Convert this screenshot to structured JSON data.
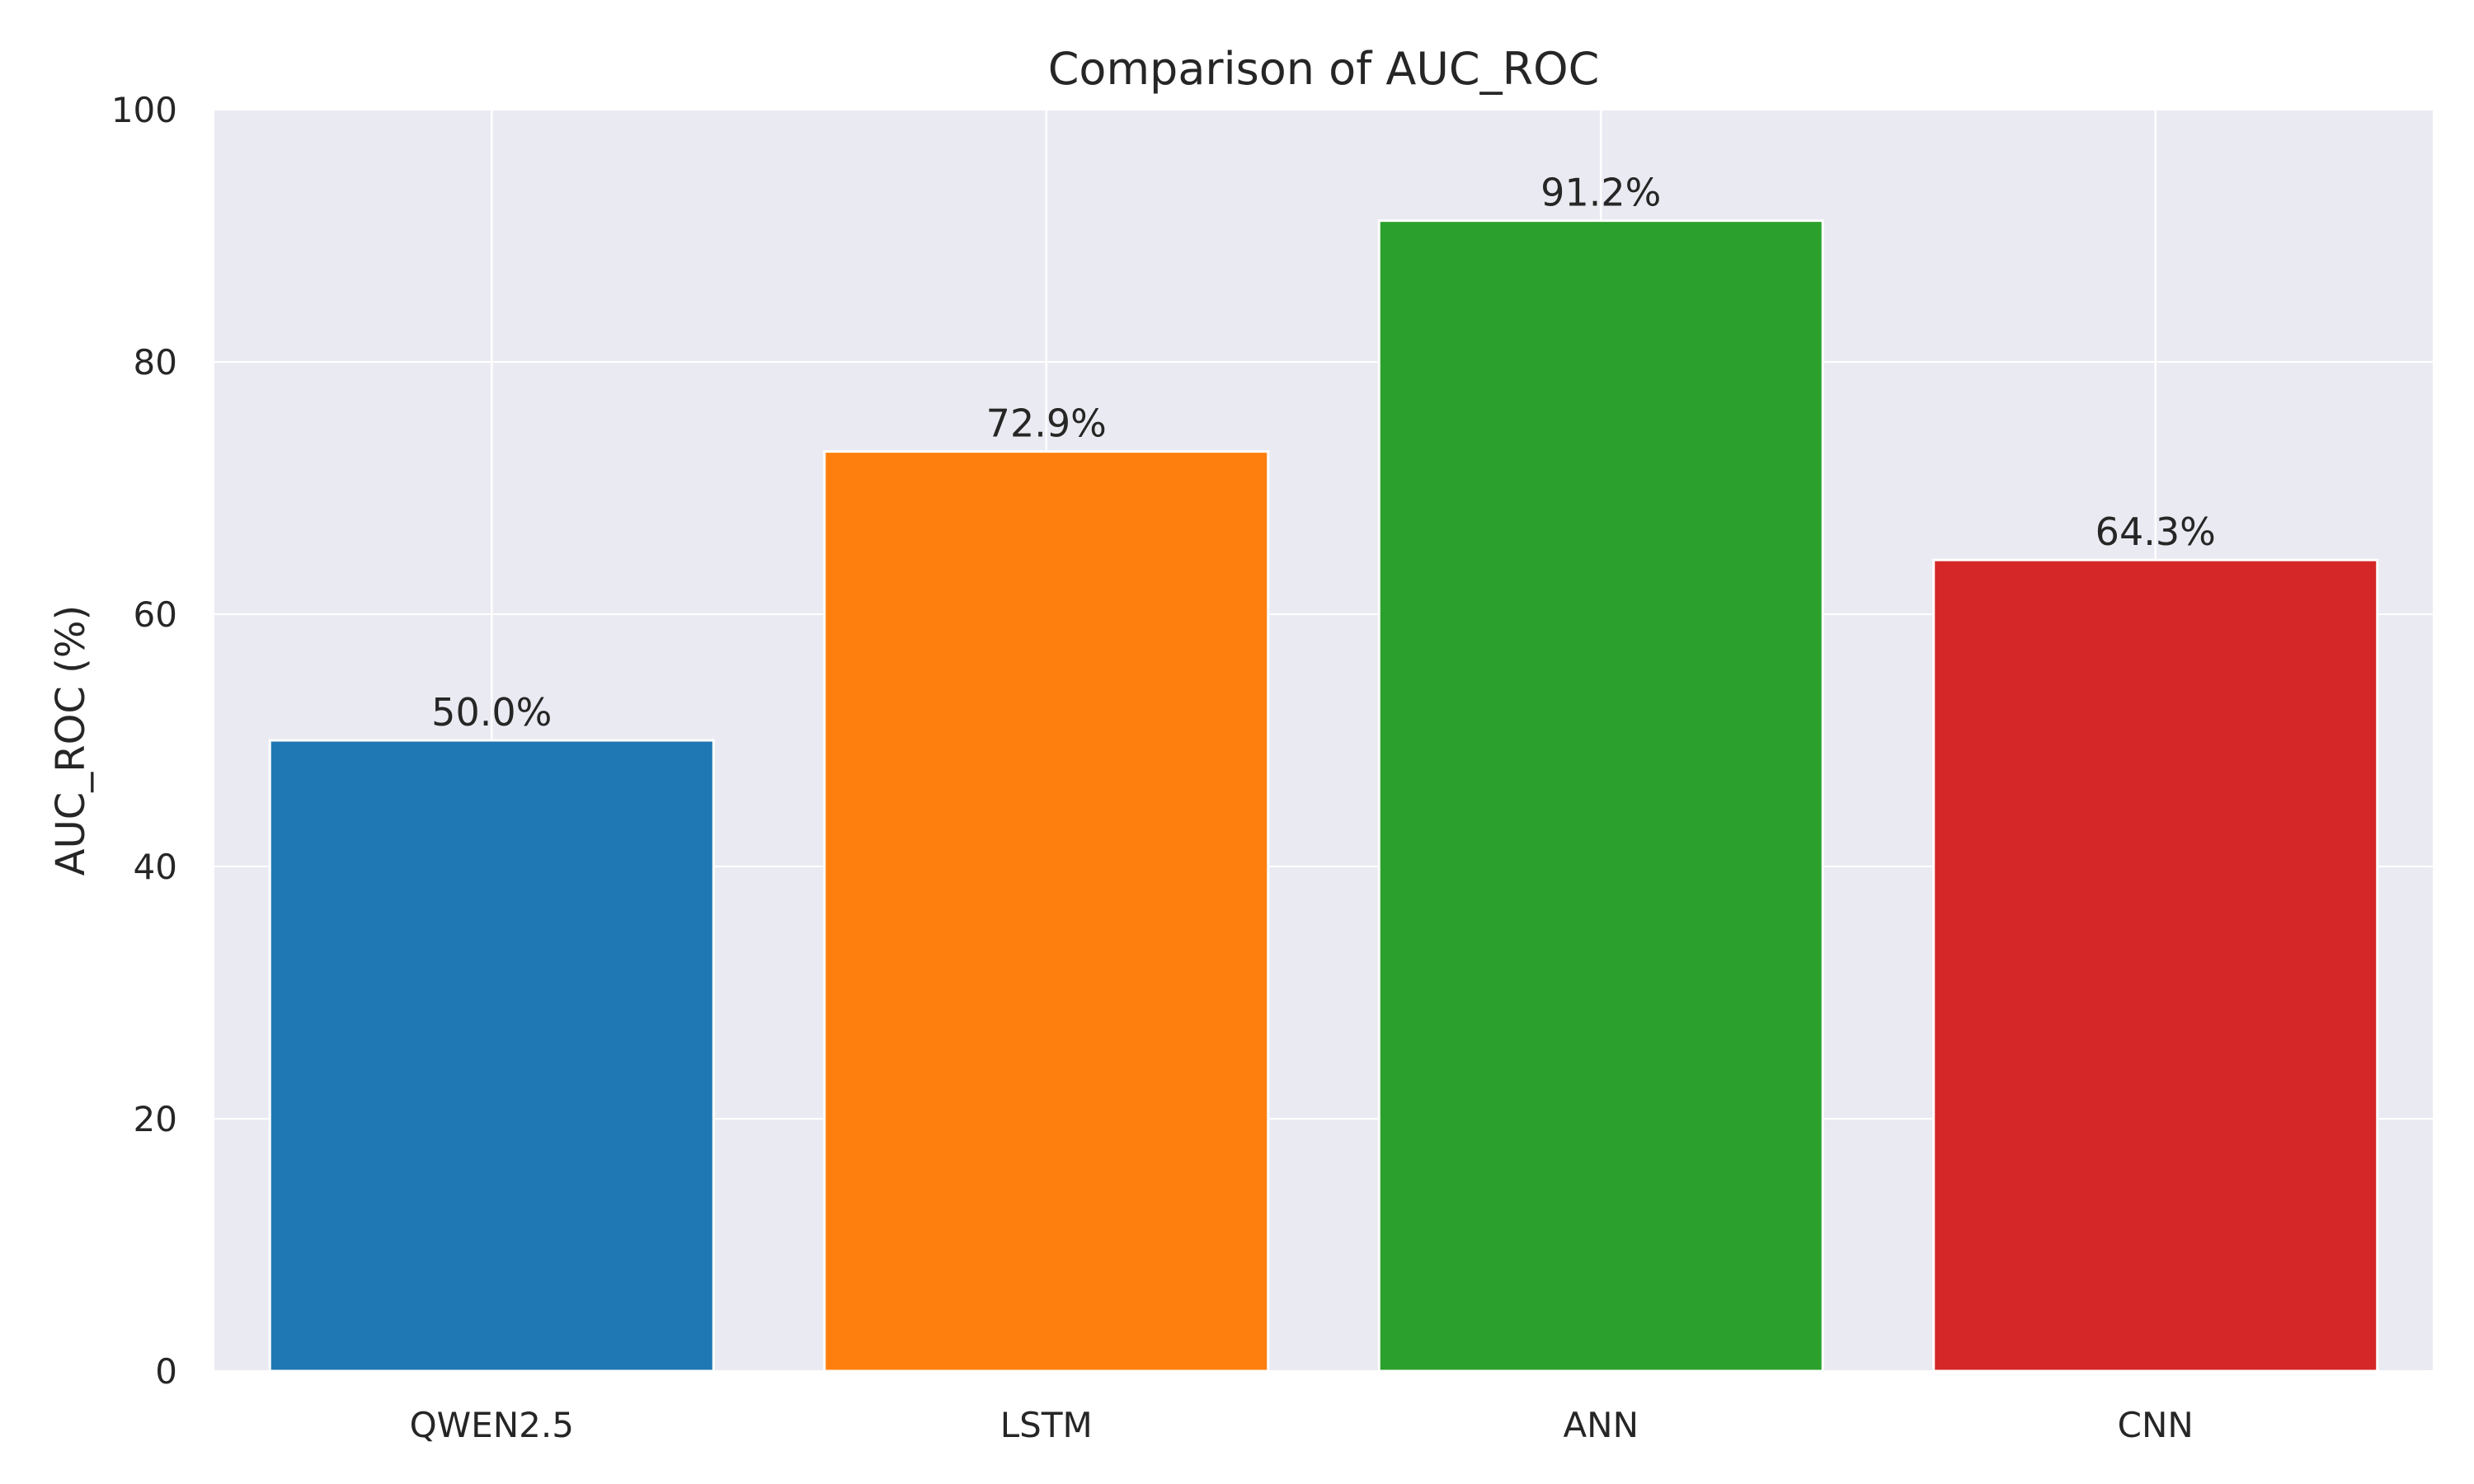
{
  "chart_data": {
    "type": "bar",
    "title": "Comparison of AUC_ROC",
    "xlabel": "",
    "ylabel": "AUC_ROC (%)",
    "categories": [
      "QWEN2.5",
      "LSTM",
      "ANN",
      "CNN"
    ],
    "values": [
      50.0,
      72.9,
      91.2,
      64.3
    ],
    "value_labels": [
      "50.0%",
      "72.9%",
      "91.2%",
      "64.3%"
    ],
    "colors": [
      "#1f77b4",
      "#ff7f0e",
      "#2ca02c",
      "#d62728"
    ],
    "ylim": [
      0,
      100
    ],
    "yticks": [
      0,
      20,
      40,
      60,
      80,
      100
    ],
    "grid": true,
    "background_color": "#eaeaf2"
  }
}
